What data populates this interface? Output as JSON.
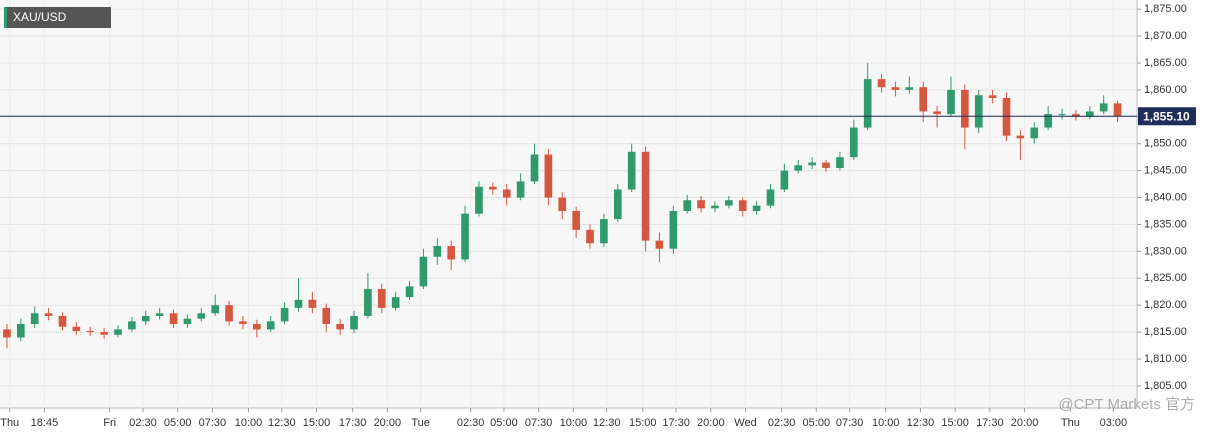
{
  "chart_data": {
    "type": "candlestick",
    "title": "XAU/USD",
    "x": [
      0,
      1,
      2,
      3,
      4,
      5,
      6,
      7,
      8,
      9,
      10,
      11,
      12,
      13,
      14,
      15,
      16,
      17,
      18,
      19,
      20,
      21,
      22,
      23,
      24,
      25,
      26,
      27,
      28,
      29,
      30,
      31,
      32,
      33,
      34,
      35,
      36,
      37,
      38,
      39,
      40,
      41,
      42,
      43,
      44,
      45,
      46,
      47,
      48,
      49,
      50,
      51,
      52,
      53,
      54,
      55,
      56,
      57,
      58,
      59,
      60,
      61,
      62,
      63,
      64,
      65,
      66,
      67,
      68,
      69,
      70,
      71,
      72,
      73,
      74,
      75,
      76,
      77,
      78,
      79,
      80
    ],
    "open": [
      1815.5,
      1814.0,
      1816.5,
      1818.5,
      1818.0,
      1816.0,
      1815.2,
      1815.0,
      1814.5,
      1815.5,
      1817.0,
      1818.0,
      1818.5,
      1816.5,
      1817.5,
      1818.5,
      1820.0,
      1817.0,
      1816.5,
      1815.5,
      1817.0,
      1819.5,
      1821.0,
      1819.5,
      1816.5,
      1815.5,
      1818.0,
      1823.0,
      1819.5,
      1821.5,
      1823.5,
      1829.0,
      1831.0,
      1828.5,
      1837.0,
      1842.0,
      1841.5,
      1840.0,
      1843.0,
      1848.0,
      1840.0,
      1837.5,
      1834.0,
      1831.5,
      1836.0,
      1841.5,
      1848.5,
      1832.0,
      1830.5,
      1837.5,
      1839.5,
      1838.0,
      1838.5,
      1839.5,
      1837.5,
      1838.5,
      1841.5,
      1845.0,
      1846.0,
      1846.5,
      1845.5,
      1847.5,
      1853.0,
      1862.0,
      1860.5,
      1860.0,
      1860.5,
      1856.0,
      1855.5,
      1860.0,
      1853.0,
      1859.0,
      1858.5,
      1851.5,
      1851.0,
      1853.0,
      1855.5,
      1855.5,
      1855.0,
      1856.0,
      1857.5
    ],
    "high": [
      1816.5,
      1817.5,
      1819.8,
      1819.5,
      1818.6,
      1816.8,
      1816.0,
      1815.8,
      1816.3,
      1817.8,
      1819.0,
      1819.5,
      1819.2,
      1818.3,
      1819.5,
      1822.0,
      1820.8,
      1818.0,
      1817.3,
      1818.0,
      1820.5,
      1825.0,
      1822.5,
      1820.3,
      1817.5,
      1819.0,
      1826.0,
      1824.0,
      1822.5,
      1824.5,
      1830.5,
      1832.5,
      1832.0,
      1838.5,
      1843.0,
      1842.8,
      1842.5,
      1844.5,
      1850.0,
      1849.0,
      1841.0,
      1838.3,
      1835.0,
      1837.0,
      1842.5,
      1850.0,
      1849.5,
      1833.5,
      1838.5,
      1840.5,
      1840.3,
      1839.3,
      1840.3,
      1840.0,
      1839.3,
      1842.5,
      1846.3,
      1847.0,
      1847.5,
      1847.0,
      1848.5,
      1854.5,
      1865.0,
      1863.0,
      1861.5,
      1862.5,
      1861.5,
      1857.0,
      1862.5,
      1861.0,
      1860.0,
      1860.0,
      1859.5,
      1852.5,
      1854.0,
      1857.0,
      1856.5,
      1856.3,
      1857.0,
      1859.0,
      1858.0
    ],
    "low": [
      1812.0,
      1813.3,
      1815.8,
      1817.2,
      1815.3,
      1814.5,
      1814.3,
      1813.8,
      1814.0,
      1815.0,
      1816.3,
      1817.3,
      1815.8,
      1815.8,
      1817.0,
      1818.0,
      1816.2,
      1815.5,
      1814.0,
      1815.0,
      1816.5,
      1818.8,
      1818.5,
      1815.0,
      1814.5,
      1814.8,
      1817.5,
      1818.5,
      1819.0,
      1821.0,
      1823.0,
      1827.5,
      1826.5,
      1828.0,
      1836.5,
      1840.5,
      1838.5,
      1839.5,
      1842.5,
      1838.5,
      1836.0,
      1832.5,
      1830.5,
      1830.8,
      1835.5,
      1841.0,
      1830.0,
      1828.0,
      1829.5,
      1837.0,
      1837.2,
      1837.3,
      1838.0,
      1836.5,
      1836.8,
      1838.0,
      1841.0,
      1844.5,
      1845.3,
      1844.8,
      1845.0,
      1847.0,
      1852.5,
      1859.5,
      1858.8,
      1859.3,
      1854.0,
      1853.0,
      1855.0,
      1849.0,
      1852.0,
      1857.5,
      1850.5,
      1847.0,
      1850.0,
      1852.5,
      1854.5,
      1854.3,
      1854.5,
      1855.5,
      1854.0
    ],
    "close": [
      1814.0,
      1816.5,
      1818.5,
      1818.0,
      1816.0,
      1815.2,
      1815.0,
      1814.5,
      1815.5,
      1817.0,
      1818.0,
      1818.5,
      1816.5,
      1817.5,
      1818.5,
      1820.0,
      1817.0,
      1816.5,
      1815.5,
      1817.0,
      1819.5,
      1821.0,
      1819.5,
      1816.5,
      1815.5,
      1818.0,
      1823.0,
      1819.5,
      1821.5,
      1823.5,
      1829.0,
      1831.0,
      1828.5,
      1837.0,
      1842.0,
      1841.5,
      1840.0,
      1843.0,
      1848.0,
      1840.0,
      1837.5,
      1834.0,
      1831.5,
      1836.0,
      1841.5,
      1848.5,
      1832.0,
      1830.5,
      1837.5,
      1839.5,
      1838.0,
      1838.5,
      1839.5,
      1837.5,
      1838.5,
      1841.5,
      1845.0,
      1846.0,
      1846.5,
      1845.5,
      1847.5,
      1853.0,
      1862.0,
      1860.5,
      1860.0,
      1860.5,
      1856.0,
      1855.5,
      1860.0,
      1853.0,
      1859.0,
      1858.5,
      1851.5,
      1851.0,
      1853.0,
      1855.5,
      1855.5,
      1855.0,
      1856.0,
      1857.5,
      1855.1
    ],
    "up_color": "#2f9a6c",
    "down_color": "#d4573f",
    "xlim": [
      -0.5,
      81.4
    ],
    "xticks": [
      {
        "value": 0.2,
        "label": "Thu"
      },
      {
        "value": 2.7,
        "label": "18:45"
      },
      {
        "value": 7.4,
        "label": "Fri"
      },
      {
        "value": 9.8,
        "label": "02:30"
      },
      {
        "value": 12.3,
        "label": "05:00"
      },
      {
        "value": 14.8,
        "label": "07:30"
      },
      {
        "value": 17.4,
        "label": "10:00"
      },
      {
        "value": 19.8,
        "label": "12:30"
      },
      {
        "value": 22.3,
        "label": "15:00"
      },
      {
        "value": 24.9,
        "label": "17:30"
      },
      {
        "value": 27.4,
        "label": "20:00"
      },
      {
        "value": 29.8,
        "label": "Tue"
      },
      {
        "value": 33.4,
        "label": "02:30"
      },
      {
        "value": 35.8,
        "label": "05:00"
      },
      {
        "value": 38.3,
        "label": "07:30"
      },
      {
        "value": 40.8,
        "label": "10:00"
      },
      {
        "value": 43.2,
        "label": "12:30"
      },
      {
        "value": 45.8,
        "label": "15:00"
      },
      {
        "value": 48.2,
        "label": "17:30"
      },
      {
        "value": 50.7,
        "label": "20:00"
      },
      {
        "value": 53.2,
        "label": "Wed"
      },
      {
        "value": 55.8,
        "label": "02:30"
      },
      {
        "value": 58.3,
        "label": "05:00"
      },
      {
        "value": 60.7,
        "label": "07:30"
      },
      {
        "value": 63.3,
        "label": "10:00"
      },
      {
        "value": 65.8,
        "label": "12:30"
      },
      {
        "value": 68.3,
        "label": "15:00"
      },
      {
        "value": 70.8,
        "label": "17:30"
      },
      {
        "value": 73.3,
        "label": "20:00"
      },
      {
        "value": 76.6,
        "label": "Thu"
      },
      {
        "value": 79.7,
        "label": "03:00"
      }
    ],
    "ylim": [
      1800.9,
      1876.7
    ],
    "yticks": [
      {
        "value": 1805,
        "label": "1,805.00"
      },
      {
        "value": 1810,
        "label": "1,810.00"
      },
      {
        "value": 1815,
        "label": "1,815.00"
      },
      {
        "value": 1820,
        "label": "1,820.00"
      },
      {
        "value": 1825,
        "label": "1,825.00"
      },
      {
        "value": 1830,
        "label": "1,830.00"
      },
      {
        "value": 1835,
        "label": "1,835.00"
      },
      {
        "value": 1840,
        "label": "1,840.00"
      },
      {
        "value": 1845,
        "label": "1,845.00"
      },
      {
        "value": 1850,
        "label": "1,850.00"
      },
      {
        "value": 1855,
        "label": "1,855.00"
      },
      {
        "value": 1860,
        "label": "1,860.00"
      },
      {
        "value": 1865,
        "label": "1,865.00"
      },
      {
        "value": 1870,
        "label": "1,870.00"
      },
      {
        "value": 1875,
        "label": "1,875.00"
      }
    ],
    "last_price": {
      "value": 1855.1,
      "label": "1,855.10"
    },
    "grid": true,
    "watermark": "@CPT Markets 官方"
  }
}
